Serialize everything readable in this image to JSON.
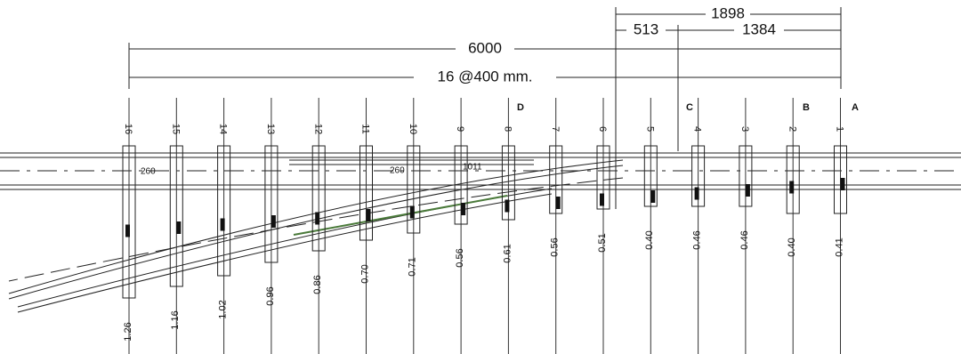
{
  "dimensions": [
    "1898",
    "513",
    "1384",
    "6000",
    "16 @400 mm."
  ],
  "sections": [
    "D",
    "C",
    "B",
    "A"
  ],
  "sleepers": [
    {
      "number": "16",
      "value": "1.26"
    },
    {
      "number": "15",
      "value": "1.16"
    },
    {
      "number": "14",
      "value": "1.02"
    },
    {
      "number": "13",
      "value": "0.96"
    },
    {
      "number": "12",
      "value": "0.86"
    },
    {
      "number": "11",
      "value": "0.70"
    },
    {
      "number": "10",
      "value": "0.71"
    },
    {
      "number": "9",
      "value": "0.56"
    },
    {
      "number": "8",
      "value": "0.61"
    },
    {
      "number": "7",
      "value": "0.56"
    },
    {
      "number": "6",
      "value": "0.51"
    },
    {
      "number": "5",
      "value": "0.40"
    },
    {
      "number": "4",
      "value": "0.46"
    },
    {
      "number": "3",
      "value": "0.46"
    },
    {
      "number": "2",
      "value": "0.40"
    },
    {
      "number": "1",
      "value": "0.41"
    }
  ],
  "annotations": [
    "260",
    "260",
    "1011"
  ]
}
